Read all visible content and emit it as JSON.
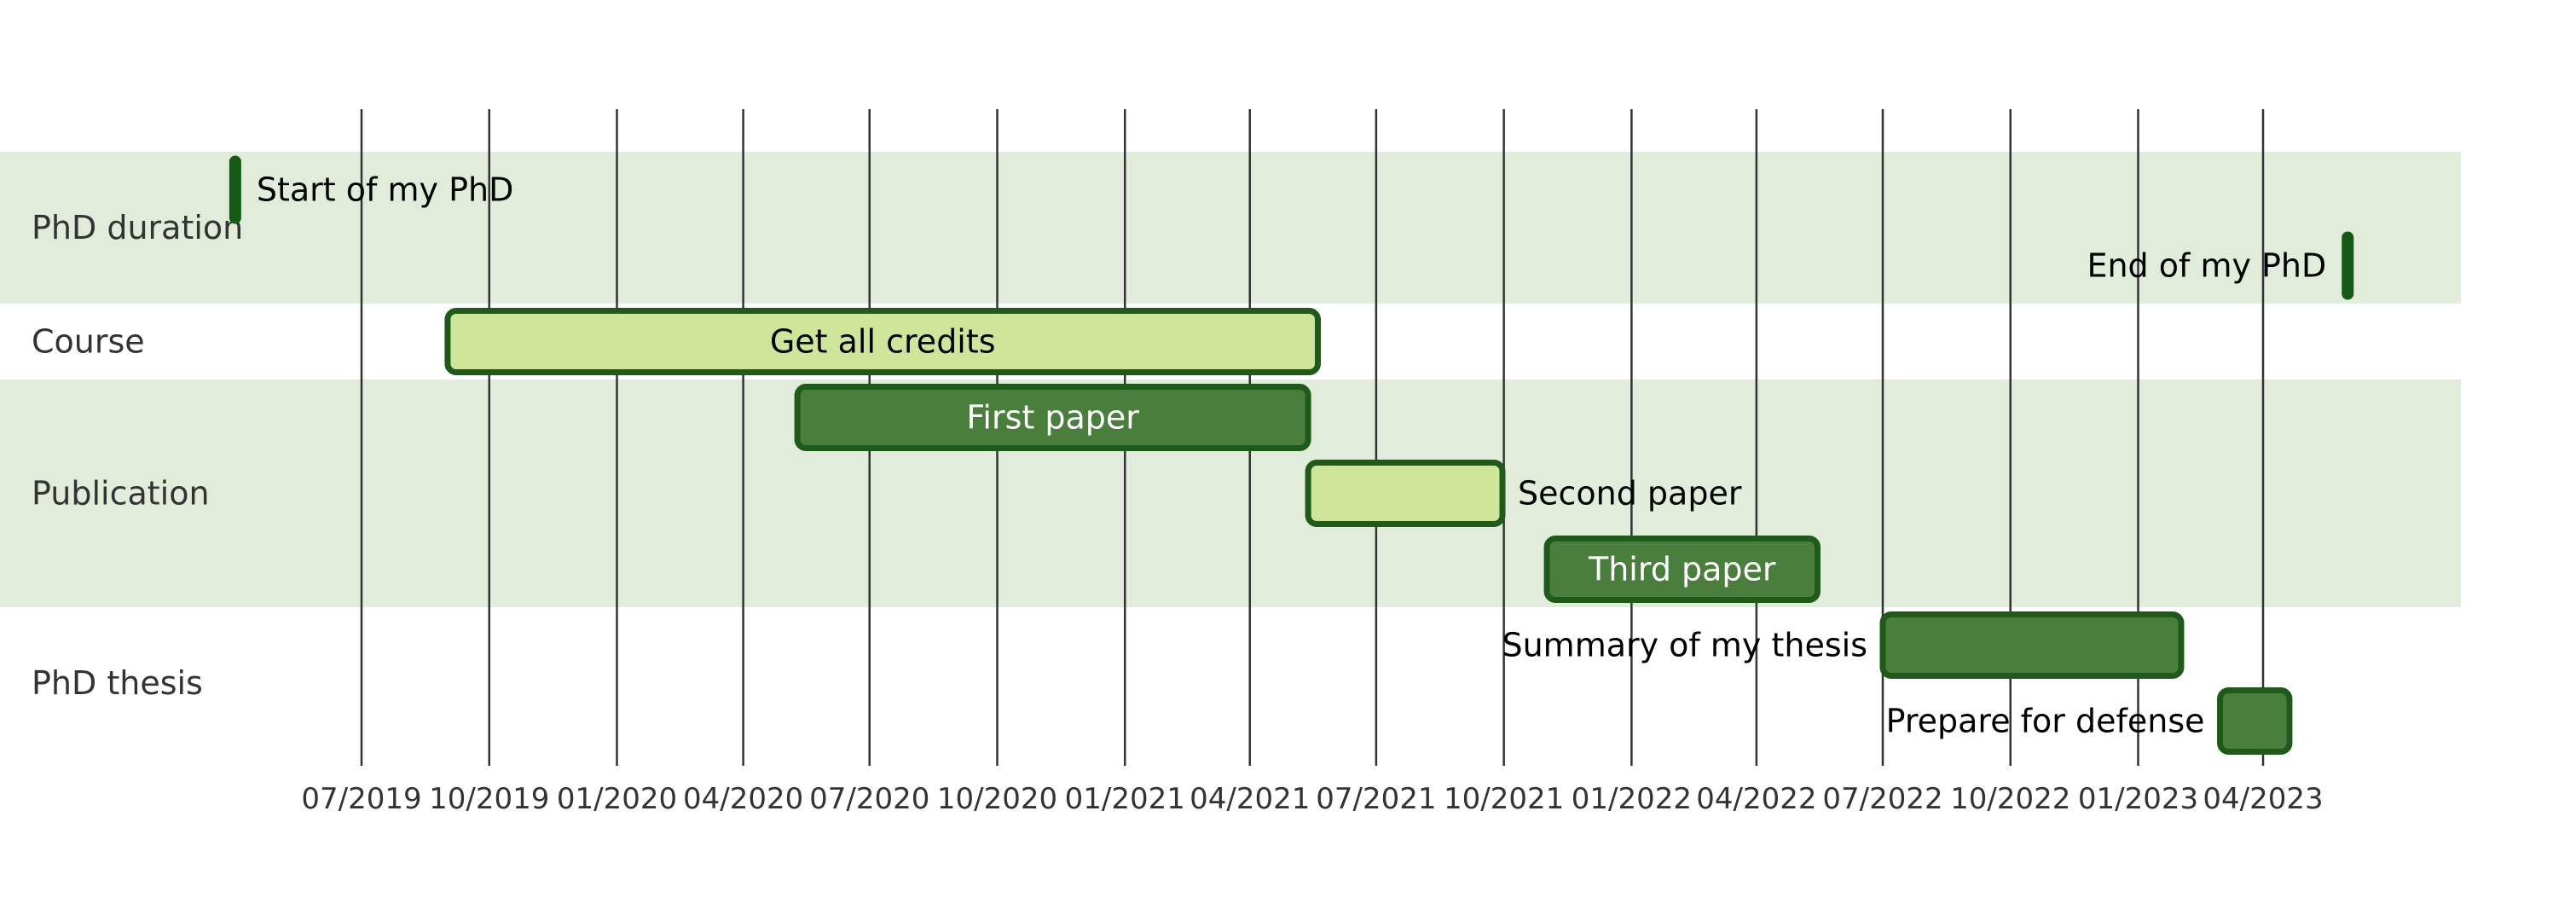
{
  "chart_data": {
    "type": "gantt",
    "title": "",
    "date_format": "MM/YYYY",
    "x_axis": {
      "min": "2019-03-01",
      "max": "2023-06-15",
      "ticks": [
        {
          "date": "2019-07-01",
          "label": "07/2019"
        },
        {
          "date": "2019-10-01",
          "label": "10/2019"
        },
        {
          "date": "2020-01-01",
          "label": "01/2020"
        },
        {
          "date": "2020-04-01",
          "label": "04/2020"
        },
        {
          "date": "2020-07-01",
          "label": "07/2020"
        },
        {
          "date": "2020-10-01",
          "label": "10/2020"
        },
        {
          "date": "2021-01-01",
          "label": "01/2021"
        },
        {
          "date": "2021-04-01",
          "label": "04/2021"
        },
        {
          "date": "2021-07-01",
          "label": "07/2021"
        },
        {
          "date": "2021-10-01",
          "label": "10/2021"
        },
        {
          "date": "2022-01-01",
          "label": "01/2022"
        },
        {
          "date": "2022-04-01",
          "label": "04/2022"
        },
        {
          "date": "2022-07-01",
          "label": "07/2022"
        },
        {
          "date": "2022-10-01",
          "label": "10/2022"
        },
        {
          "date": "2023-01-01",
          "label": "01/2023"
        },
        {
          "date": "2023-04-01",
          "label": "04/2023"
        }
      ],
      "grid": true
    },
    "sections": [
      {
        "name": "PhD duration",
        "rows": 2,
        "shaded": true
      },
      {
        "name": "Course",
        "rows": 1,
        "shaded": false
      },
      {
        "name": "Publication",
        "rows": 3,
        "shaded": true
      },
      {
        "name": "PhD thesis",
        "rows": 2,
        "shaded": false
      }
    ],
    "tasks": [
      {
        "label": "Start of my PhD",
        "section": "PhD duration",
        "row": 0,
        "start": "2019-04-01",
        "end": "2019-04-01",
        "milestone": true,
        "style": "milestone",
        "label_position": "right"
      },
      {
        "label": "End of my PhD",
        "section": "PhD duration",
        "row": 1,
        "start": "2023-06-01",
        "end": "2023-06-01",
        "milestone": true,
        "style": "milestone",
        "label_position": "left"
      },
      {
        "label": "Get all credits",
        "section": "Course",
        "row": 2,
        "start": "2019-09-01",
        "end": "2021-05-20",
        "style": "light",
        "label_position": "inside"
      },
      {
        "label": "First paper",
        "section": "Publication",
        "row": 3,
        "start": "2020-05-10",
        "end": "2021-05-13",
        "style": "dark",
        "label_position": "inside"
      },
      {
        "label": "Second paper",
        "section": "Publication",
        "row": 4,
        "start": "2021-05-13",
        "end": "2021-09-30",
        "style": "light",
        "label_position": "right"
      },
      {
        "label": "Third paper",
        "section": "Publication",
        "row": 5,
        "start": "2021-11-01",
        "end": "2022-05-15",
        "style": "dark",
        "label_position": "inside"
      },
      {
        "label": "Summary of my thesis",
        "section": "PhD thesis",
        "row": 6,
        "start": "2022-07-01",
        "end": "2023-02-01",
        "style": "dark",
        "label_position": "left"
      },
      {
        "label": "Prepare for defense",
        "section": "PhD thesis",
        "row": 7,
        "start": "2023-03-01",
        "end": "2023-04-20",
        "style": "dark",
        "label_position": "left"
      }
    ]
  },
  "colors": {
    "section_shade": "#e2ecdb",
    "grid_line": "#333333",
    "bar_dark_fill": "#4a7e3c",
    "bar_light_fill": "#cfe59a",
    "bar_border": "#1f5a1a",
    "milestone_fill": "#145a14",
    "text": "#000000",
    "text_on_dark": "#ffffff",
    "section_text": "#333333"
  }
}
